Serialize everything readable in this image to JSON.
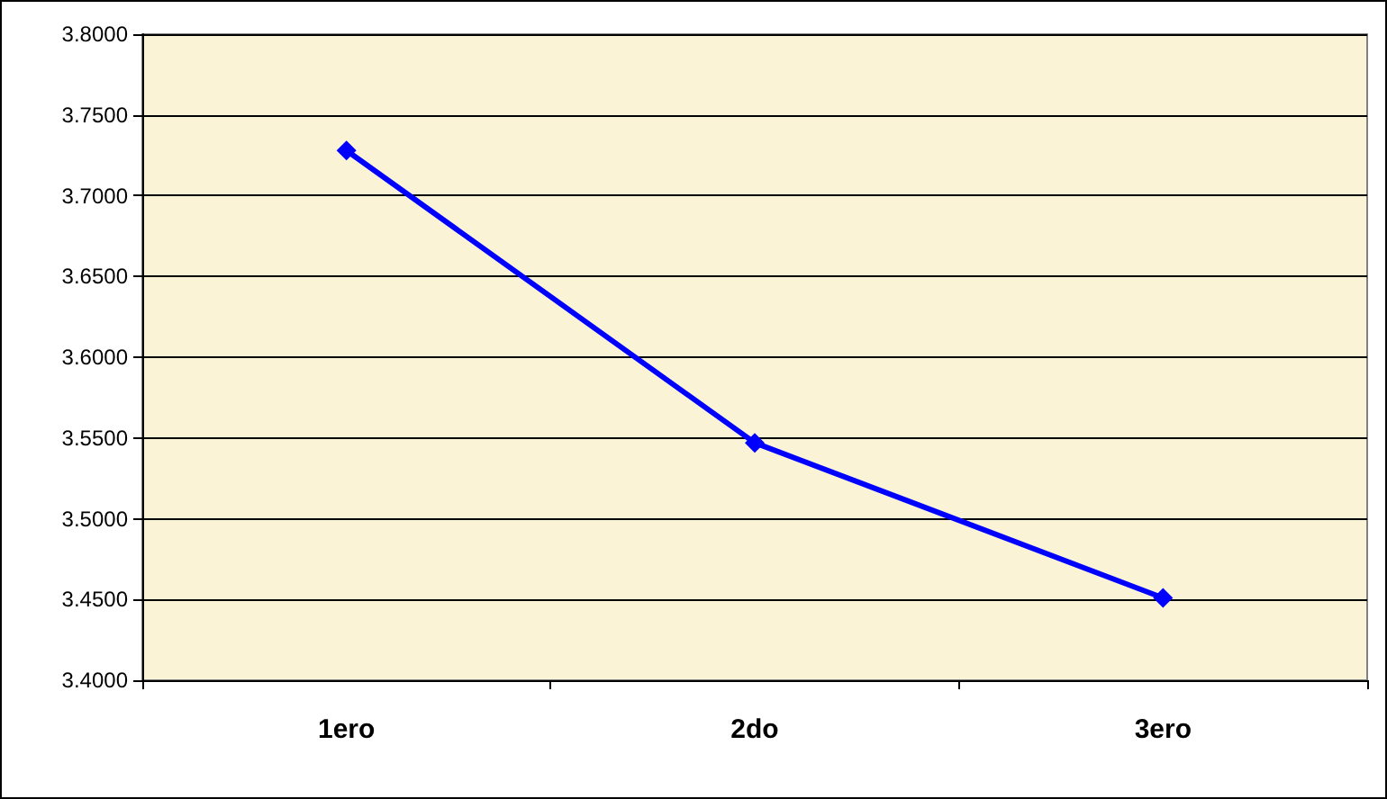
{
  "chart_data": {
    "type": "line",
    "categories": [
      "1ero",
      "2do",
      "3ero"
    ],
    "series": [
      {
        "color": "#0000ff",
        "values": [
          3.728,
          3.547,
          3.451
        ]
      }
    ],
    "ylim": [
      3.4,
      3.8
    ],
    "yticks": [
      {
        "value": 3.4,
        "label": "3.4000"
      },
      {
        "value": 3.45,
        "label": "3.4500"
      },
      {
        "value": 3.5,
        "label": "3.5000"
      },
      {
        "value": 3.55,
        "label": "3.5500"
      },
      {
        "value": 3.6,
        "label": "3.6000"
      },
      {
        "value": 3.65,
        "label": "3.6500"
      },
      {
        "value": 3.7,
        "label": "3.7000"
      },
      {
        "value": 3.75,
        "label": "3.7500"
      },
      {
        "value": 3.8,
        "label": "3.8000"
      }
    ],
    "grid": "y",
    "marker": "diamond",
    "line_style": "solid"
  }
}
